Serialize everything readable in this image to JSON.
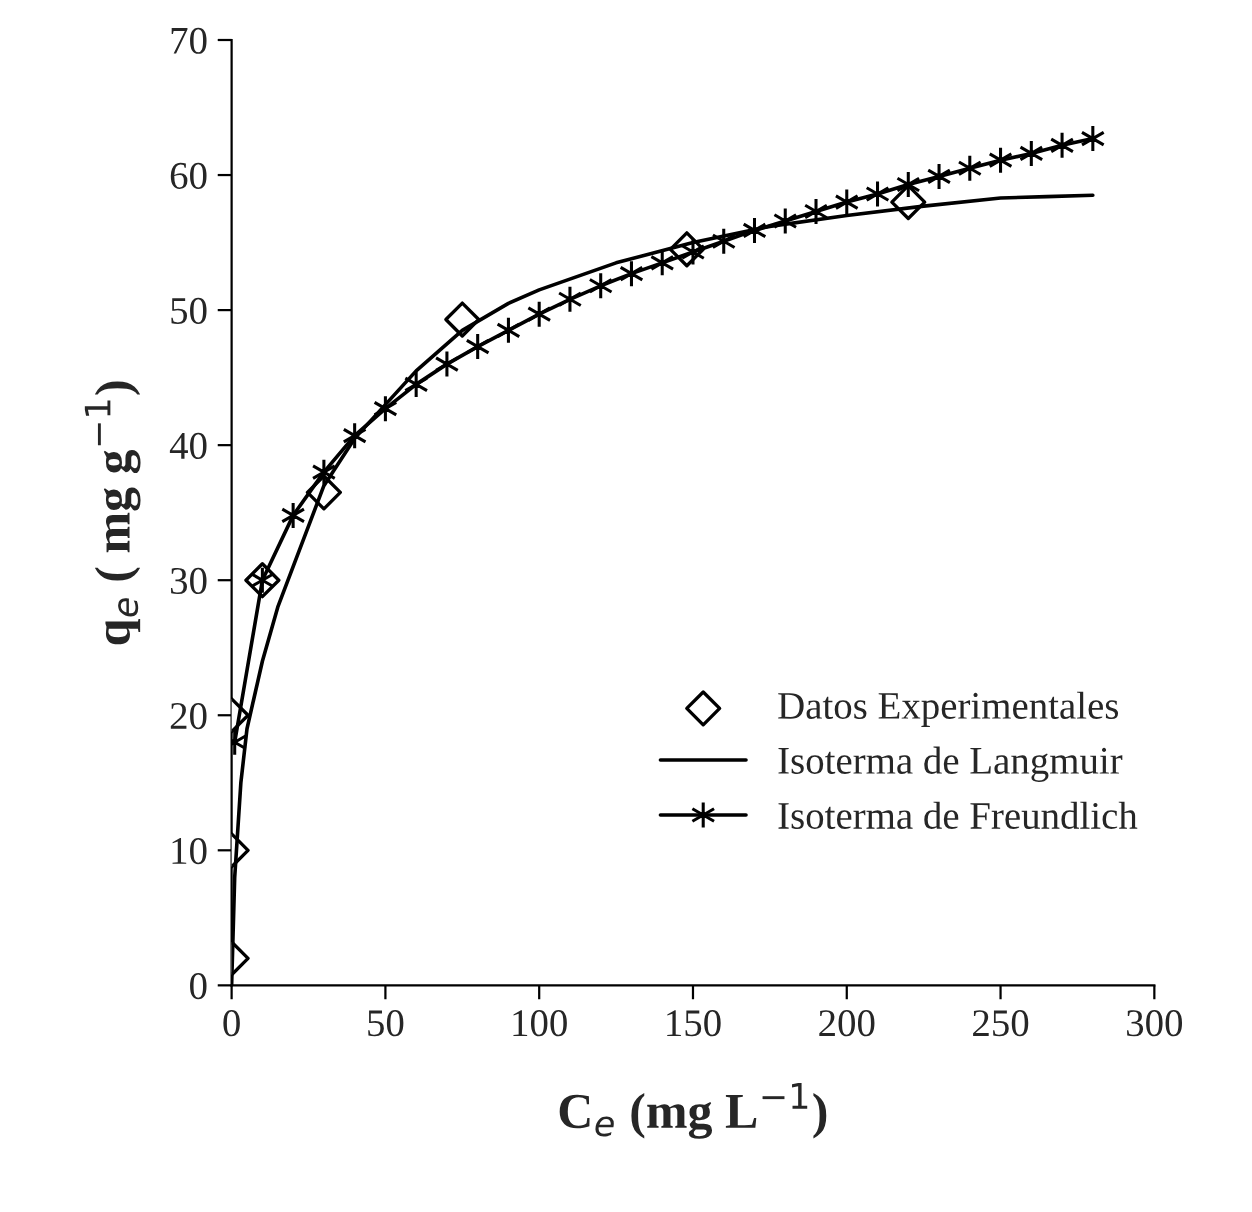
{
  "chart_data": {
    "type": "line",
    "xlabel": "C$_{e}$ (mg L$^{−1}$)",
    "ylabel": "q$_{e}$ ( mg g$^{−1}$)",
    "xlim": [
      0,
      300
    ],
    "xticks": [
      0,
      50,
      100,
      150,
      200,
      250,
      300
    ],
    "ylim": [
      0,
      70
    ],
    "yticks": [
      0,
      10,
      20,
      30,
      40,
      50,
      60,
      70
    ],
    "legend": "bottom right",
    "grid": false,
    "series": [
      {
        "name": "Datos Experimentales",
        "type": "scatter",
        "marker": "diamond",
        "color": "#000000",
        "x": [
          0,
          0,
          0,
          10,
          30,
          75,
          148,
          220
        ],
        "values": [
          2,
          10,
          20,
          30,
          36.5,
          49.3,
          54.5,
          58
        ]
      },
      {
        "name": "Isoterma de Langmuir",
        "marker": "none",
        "color": "#000000",
        "x": [
          0,
          1,
          3,
          5,
          10,
          15,
          20,
          30,
          40,
          50,
          60,
          75,
          90,
          100,
          125,
          150,
          175,
          200,
          225,
          250,
          265,
          280
        ],
        "values": [
          0,
          8,
          15,
          19,
          24,
          28,
          31,
          37,
          40.5,
          43,
          45.5,
          48.5,
          50.5,
          51.5,
          53.5,
          55,
          56.2,
          57,
          57.7,
          58.3,
          58.4,
          58.5
        ]
      },
      {
        "name": "Isoterma de Freundlich",
        "type": "line",
        "marker": "cross",
        "color": "#000000",
        "x": [
          1,
          10,
          20,
          30,
          40,
          50,
          60,
          70,
          80,
          90,
          100,
          110,
          120,
          130,
          140,
          150,
          160,
          170,
          180,
          190,
          200,
          210,
          220,
          230,
          240,
          250,
          260,
          270,
          280
        ],
        "values": [
          18,
          30,
          34.8,
          38,
          40.7,
          42.7,
          44.5,
          46,
          47.3,
          48.5,
          49.7,
          50.8,
          51.8,
          52.7,
          53.5,
          54.3,
          55.1,
          55.9,
          56.6,
          57.3,
          58,
          58.6,
          59.3,
          59.9,
          60.5,
          61.1,
          61.6,
          62.2,
          62.7
        ]
      }
    ]
  }
}
